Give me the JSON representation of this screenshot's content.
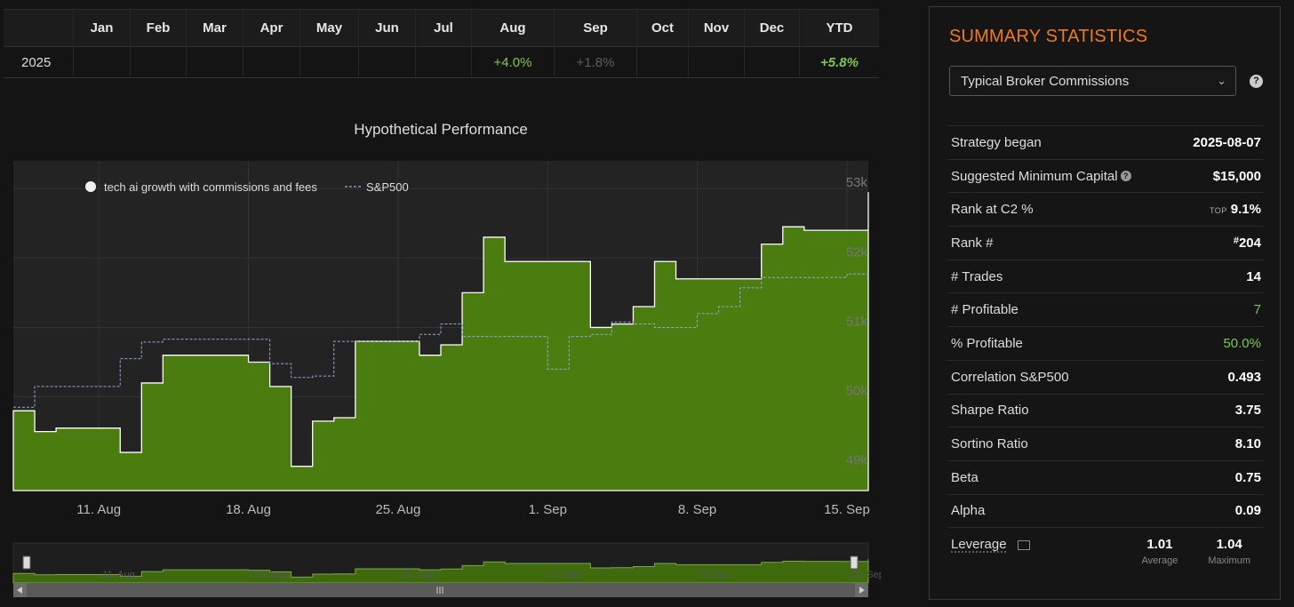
{
  "returns_table": {
    "headers": [
      "",
      "Jan",
      "Feb",
      "Mar",
      "Apr",
      "May",
      "Jun",
      "Jul",
      "Aug",
      "Sep",
      "Oct",
      "Nov",
      "Dec",
      "YTD"
    ],
    "row": {
      "year": "2025",
      "cells": [
        "",
        "",
        "",
        "",
        "",
        "",
        "",
        "+4.0%",
        "+1.8%",
        "",
        "",
        "",
        "+5.8%"
      ]
    }
  },
  "chart": {
    "title": "Hypothetical Performance",
    "legend": {
      "strategy": "tech ai growth with commissions and fees",
      "benchmark": "S&P500"
    },
    "y_ticks": [
      "49k",
      "50k",
      "51k",
      "52k",
      "53k"
    ],
    "x_ticks": [
      "11. Aug",
      "18. Aug",
      "25. Aug",
      "1. Sep",
      "8. Sep",
      "15. Sep"
    ],
    "navigator_ticks": [
      "11. Aug",
      "18. Aug",
      "25. Aug",
      "1. Sep",
      "8. Sep",
      "15. Sep"
    ],
    "colors": {
      "strategy_fill": "#4a7c10",
      "benchmark_line": "#9aa6d8",
      "plot_bg": "#232323"
    }
  },
  "chart_data": {
    "type": "area",
    "title": "Hypothetical Performance",
    "xlabel": "",
    "ylabel": "",
    "ylim": [
      48650,
      53400
    ],
    "grid": true,
    "legend_position": "top-left",
    "series": [
      {
        "name": "tech ai growth with commissions and fees",
        "type": "area",
        "x": [
          "2025-08-07",
          "2025-08-08",
          "2025-08-09",
          "2025-08-10",
          "2025-08-11",
          "2025-08-12",
          "2025-08-13",
          "2025-08-14",
          "2025-08-15",
          "2025-08-16",
          "2025-08-17",
          "2025-08-18",
          "2025-08-19",
          "2025-08-20",
          "2025-08-21",
          "2025-08-22",
          "2025-08-23",
          "2025-08-24",
          "2025-08-25",
          "2025-08-26",
          "2025-08-27",
          "2025-08-28",
          "2025-08-29",
          "2025-08-30",
          "2025-08-31",
          "2025-09-01",
          "2025-09-02",
          "2025-09-03",
          "2025-09-04",
          "2025-09-05",
          "2025-09-06",
          "2025-09-07",
          "2025-09-08",
          "2025-09-09",
          "2025-09-10",
          "2025-09-11",
          "2025-09-12",
          "2025-09-13",
          "2025-09-14",
          "2025-09-15",
          "2025-09-16"
        ],
        "values": [
          49800,
          49500,
          49550,
          49550,
          49550,
          49200,
          50200,
          50600,
          50600,
          50600,
          50600,
          50500,
          50150,
          49000,
          49650,
          49700,
          50800,
          50800,
          50800,
          50600,
          50750,
          51500,
          52300,
          51950,
          51950,
          51950,
          51950,
          51000,
          51050,
          51300,
          51950,
          51700,
          51700,
          51700,
          51700,
          52200,
          52450,
          52400,
          52400,
          52400,
          52950
        ]
      },
      {
        "name": "S&P500",
        "type": "line",
        "x": [
          "2025-08-07",
          "2025-08-08",
          "2025-08-09",
          "2025-08-10",
          "2025-08-11",
          "2025-08-12",
          "2025-08-13",
          "2025-08-14",
          "2025-08-15",
          "2025-08-16",
          "2025-08-17",
          "2025-08-18",
          "2025-08-19",
          "2025-08-20",
          "2025-08-21",
          "2025-08-22",
          "2025-08-23",
          "2025-08-24",
          "2025-08-25",
          "2025-08-26",
          "2025-08-27",
          "2025-08-28",
          "2025-08-29",
          "2025-08-30",
          "2025-08-31",
          "2025-09-01",
          "2025-09-02",
          "2025-09-03",
          "2025-09-04",
          "2025-09-05",
          "2025-09-06",
          "2025-09-07",
          "2025-09-08",
          "2025-09-09",
          "2025-09-10",
          "2025-09-11",
          "2025-09-12",
          "2025-09-13",
          "2025-09-14",
          "2025-09-15",
          "2025-09-16"
        ],
        "values": [
          49850,
          50150,
          50150,
          50150,
          50150,
          50550,
          50790,
          50830,
          50830,
          50830,
          50830,
          50830,
          50480,
          50280,
          50300,
          50800,
          50800,
          50800,
          50800,
          50900,
          51050,
          50870,
          50870,
          50870,
          50870,
          50400,
          50870,
          50900,
          51080,
          51050,
          51000,
          51000,
          51200,
          51300,
          51570,
          51720,
          51720,
          51720,
          51720,
          51770,
          51770
        ]
      }
    ]
  },
  "summary": {
    "title": "SUMMARY STATISTICS",
    "commission_select": "Typical Broker Commissions",
    "stats": [
      {
        "label": "Strategy began",
        "value": "2025-08-07"
      },
      {
        "label": "Suggested Minimum Capital",
        "value": "$15,000"
      },
      {
        "label": "Rank at C2 %",
        "prefix": "TOP",
        "value": "9.1%"
      },
      {
        "label": "Rank #",
        "prefix": "#",
        "value": "204"
      },
      {
        "label": "# Trades",
        "value": "14"
      },
      {
        "label": "# Profitable",
        "value": "7"
      },
      {
        "label": "% Profitable",
        "value": "50.0%"
      },
      {
        "label": "Correlation S&P500",
        "value": "0.493"
      },
      {
        "label": "Sharpe Ratio",
        "value": "3.75"
      },
      {
        "label": "Sortino Ratio",
        "value": "8.10"
      },
      {
        "label": "Beta",
        "value": "0.75"
      },
      {
        "label": "Alpha",
        "value": "0.09"
      }
    ],
    "leverage": {
      "label": "Leverage",
      "average": "1.01",
      "average_label": "Average",
      "maximum": "1.04",
      "maximum_label": "Maximum"
    }
  }
}
